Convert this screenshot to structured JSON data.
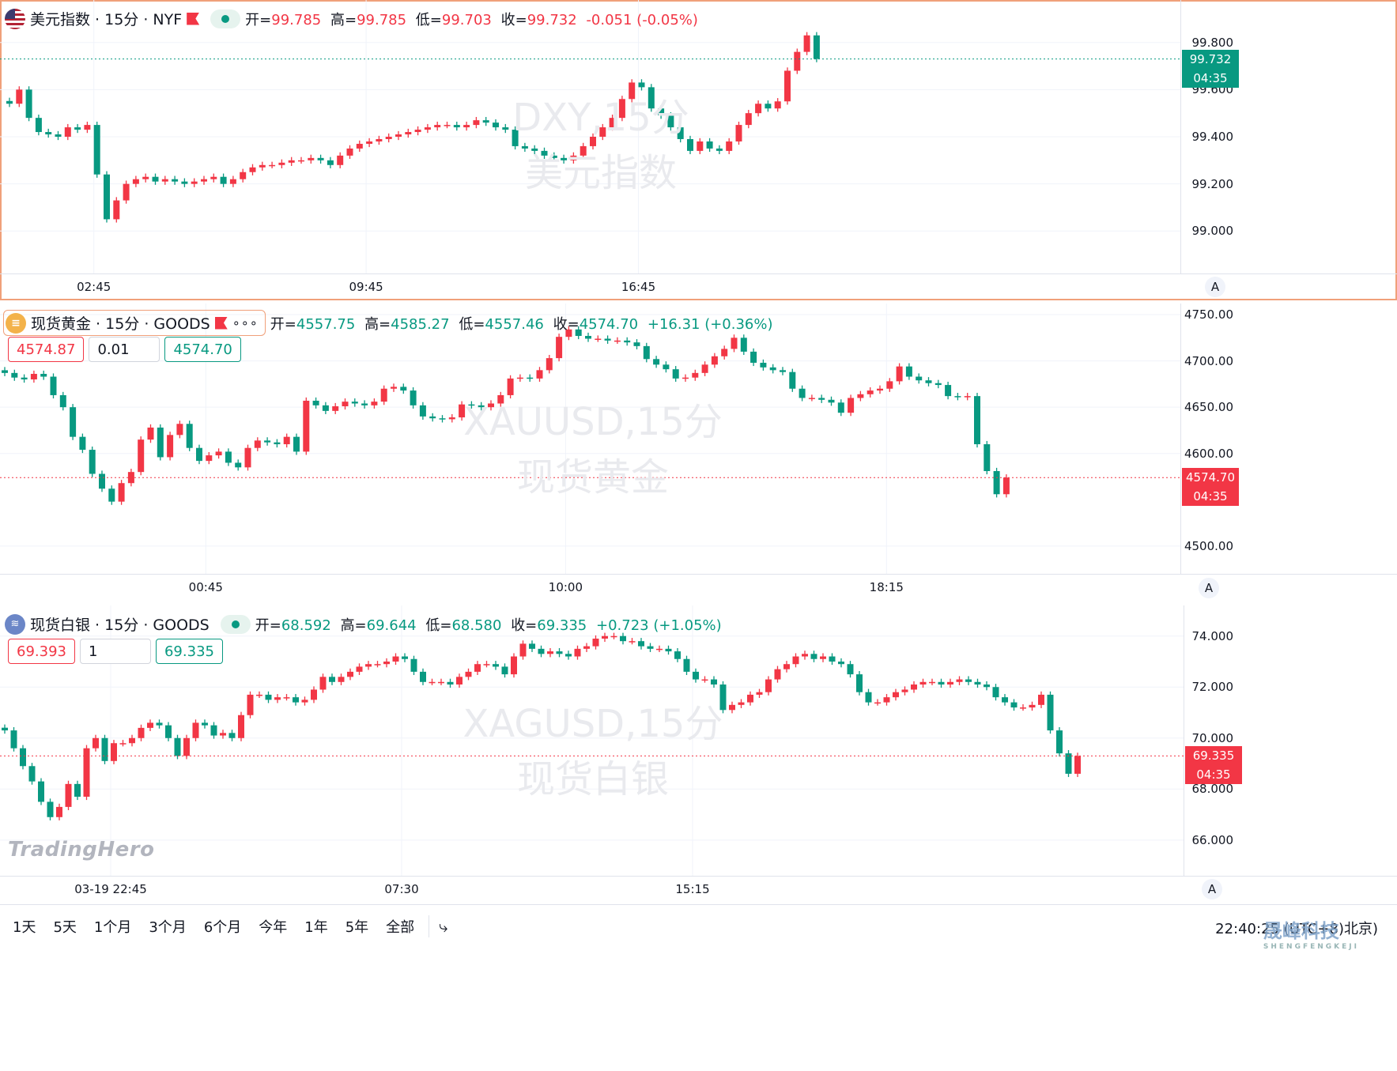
{
  "colors": {
    "up": "#089981",
    "down": "#f23645",
    "grid": "#f0f3fa",
    "watermark": "#e9eaee"
  },
  "panes": [
    {
      "id": "dxy",
      "icon": "us-flag-icon",
      "symbol": "美元指数 · 15分 · NYF",
      "ohlc": {
        "open_label": "开=",
        "open": "99.785",
        "high_label": "高=",
        "high": "99.785",
        "low_label": "低=",
        "low": "99.703",
        "close_label": "收=",
        "close": "99.732",
        "change": "-0.051 (-0.05%)",
        "direction": "down"
      },
      "watermark": [
        "DXY,15分",
        "美元指数"
      ],
      "y_ticks": [
        "99.800",
        "99.600",
        "99.400",
        "99.200",
        "99.000"
      ],
      "y_tick_values": [
        99.8,
        99.6,
        99.4,
        99.2,
        99.0
      ],
      "ylim": [
        98.82,
        99.98
      ],
      "time_ticks": [
        "02:45",
        "09:45",
        "16:45"
      ],
      "time_tick_index": [
        9,
        37,
        65
      ],
      "price_label": {
        "price": "99.732",
        "countdown": "04:35",
        "color": "#089981"
      },
      "auto_label": "A"
    },
    {
      "id": "gold",
      "icon": "gold-icon",
      "symbol": "现货黄金 · 15分 · GOODS",
      "more": "∘∘∘",
      "ohlc": {
        "open_label": "开=",
        "open": "4557.75",
        "high_label": "高=",
        "high": "4585.27",
        "low_label": "低=",
        "low": "4557.46",
        "close_label": "收=",
        "close": "4574.70",
        "change": "+16.31 (+0.36%)",
        "direction": "up"
      },
      "order": {
        "sell": "4574.87",
        "qty": "0.01",
        "buy": "4574.70"
      },
      "watermark": [
        "XAUUSD,15分",
        "现货黄金"
      ],
      "y_ticks": [
        "4750.00",
        "4700.00",
        "4650.00",
        "4600.00",
        "4500.00"
      ],
      "y_tick_values": [
        4750,
        4700,
        4650,
        4600,
        4500
      ],
      "ylim": [
        4470,
        4762
      ],
      "time_ticks": [
        "00:45",
        "10:00",
        "18:15"
      ],
      "time_tick_index": [
        21,
        58,
        91
      ],
      "price_label": {
        "price": "4574.70",
        "countdown": "04:35",
        "color": "#f23645"
      },
      "auto_label": "A"
    },
    {
      "id": "silver",
      "icon": "silver-icon",
      "symbol": "现货白银 · 15分 · GOODS",
      "ohlc": {
        "open_label": "开=",
        "open": "68.592",
        "high_label": "高=",
        "high": "69.644",
        "low_label": "低=",
        "low": "68.580",
        "close_label": "收=",
        "close": "69.335",
        "change": "+0.723 (+1.05%)",
        "direction": "up"
      },
      "order": {
        "sell": "69.393",
        "qty": "1",
        "buy": "69.335"
      },
      "watermark": [
        "XAGUSD,15分",
        "现货白银"
      ],
      "y_ticks": [
        "74.000",
        "72.000",
        "70.000",
        "68.000",
        "66.000"
      ],
      "y_tick_values": [
        74,
        72,
        70,
        68,
        66
      ],
      "ylim": [
        64.6,
        75.2
      ],
      "time_ticks": [
        "03-19 22:45",
        "07:30",
        "15:15"
      ],
      "time_tick_index": [
        12,
        44,
        76
      ],
      "price_label": {
        "price": "69.335",
        "countdown": "04:35",
        "color": "#f23645"
      },
      "auto_label": "A"
    }
  ],
  "chart_data": [
    {
      "type": "candlestick",
      "title": "DXY,15分",
      "series": [
        {
          "name": "美元指数",
          "close": [
            99.54,
            99.6,
            99.48,
            99.42,
            99.41,
            99.4,
            99.44,
            99.43,
            99.45,
            99.24,
            99.05,
            99.13,
            99.2,
            99.22,
            99.23,
            99.21,
            99.22,
            99.21,
            99.2,
            99.21,
            99.22,
            99.23,
            99.2,
            99.22,
            99.25,
            99.27,
            99.28,
            99.28,
            99.29,
            99.3,
            99.3,
            99.31,
            99.3,
            99.28,
            99.32,
            99.35,
            99.37,
            99.38,
            99.39,
            99.4,
            99.41,
            99.42,
            99.43,
            99.44,
            99.45,
            99.45,
            99.44,
            99.45,
            99.47,
            99.46,
            99.44,
            99.43,
            99.36,
            99.35,
            99.34,
            99.32,
            99.31,
            99.3,
            99.32,
            99.36,
            99.4,
            99.44,
            99.48,
            99.56,
            99.63,
            99.61,
            99.52,
            99.49,
            99.44,
            99.39,
            99.34,
            99.38,
            99.35,
            99.34,
            99.38,
            99.45,
            99.5,
            99.54,
            99.52,
            99.55,
            99.68,
            99.76,
            99.83,
            99.73
          ]
        }
      ]
    },
    {
      "type": "candlestick",
      "title": "XAUUSD,15分",
      "series": [
        {
          "name": "现货黄金",
          "close": [
            4687,
            4682,
            4680,
            4686,
            4683,
            4663,
            4650,
            4618,
            4604,
            4578,
            4562,
            4548,
            4568,
            4580,
            4615,
            4628,
            4596,
            4620,
            4632,
            4606,
            4592,
            4598,
            4602,
            4590,
            4585,
            4606,
            4614,
            4612,
            4610,
            4618,
            4602,
            4657,
            4652,
            4646,
            4651,
            4656,
            4654,
            4652,
            4656,
            4670,
            4672,
            4668,
            4652,
            4640,
            4638,
            4637,
            4639,
            4653,
            4652,
            4650,
            4654,
            4663,
            4681,
            4682,
            4681,
            4690,
            4703,
            4726,
            4734,
            4727,
            4724,
            4724,
            4722,
            4722,
            4720,
            4716,
            4702,
            4696,
            4691,
            4681,
            4682,
            4687,
            4696,
            4705,
            4713,
            4725,
            4710,
            4698,
            4693,
            4690,
            4688,
            4670,
            4660,
            4660,
            4658,
            4655,
            4644,
            4660,
            4664,
            4668,
            4670,
            4678,
            4694,
            4683,
            4679,
            4676,
            4674,
            4662,
            4661,
            4662,
            4610,
            4581,
            4556,
            4574
          ]
        }
      ]
    },
    {
      "type": "candlestick",
      "title": "XAGUSD,15分",
      "series": [
        {
          "name": "现货白银",
          "close": [
            70.3,
            69.6,
            68.9,
            68.3,
            67.5,
            66.9,
            67.3,
            68.2,
            67.7,
            69.6,
            70.0,
            69.1,
            69.8,
            69.8,
            70.0,
            70.4,
            70.6,
            70.5,
            70.0,
            69.3,
            70.0,
            70.6,
            70.5,
            70.1,
            70.2,
            70.0,
            70.9,
            71.7,
            71.7,
            71.5,
            71.6,
            71.6,
            71.4,
            71.5,
            71.9,
            72.4,
            72.2,
            72.4,
            72.6,
            72.8,
            72.9,
            72.9,
            73.0,
            73.2,
            73.1,
            72.6,
            72.2,
            72.2,
            72.2,
            72.1,
            72.4,
            72.6,
            72.9,
            72.9,
            72.8,
            72.5,
            73.2,
            73.7,
            73.5,
            73.3,
            73.4,
            73.3,
            73.2,
            73.5,
            73.6,
            73.9,
            74.0,
            74.0,
            73.8,
            73.8,
            73.6,
            73.5,
            73.5,
            73.4,
            73.1,
            72.6,
            72.3,
            72.3,
            72.1,
            71.1,
            71.3,
            71.4,
            71.7,
            71.8,
            72.3,
            72.7,
            72.9,
            73.2,
            73.3,
            73.1,
            73.2,
            73.0,
            72.9,
            72.5,
            71.8,
            71.4,
            71.4,
            71.6,
            71.8,
            71.9,
            72.1,
            72.2,
            72.2,
            72.1,
            72.2,
            72.3,
            72.2,
            72.1,
            72.0,
            71.6,
            71.4,
            71.2,
            71.2,
            71.3,
            71.7,
            70.3,
            69.4,
            68.6,
            69.3
          ]
        }
      ]
    }
  ],
  "bottom_bar": {
    "ranges": [
      "1天",
      "5天",
      "1个月",
      "3个月",
      "6个月",
      "今年",
      "1年",
      "5年",
      "全部"
    ],
    "clock": "22:40:25 (UTC+8)北京)"
  },
  "brand": "TradingHero",
  "corner_logo": {
    "name": "晟峰科技",
    "sub": "SHENGFENGKEJI"
  }
}
